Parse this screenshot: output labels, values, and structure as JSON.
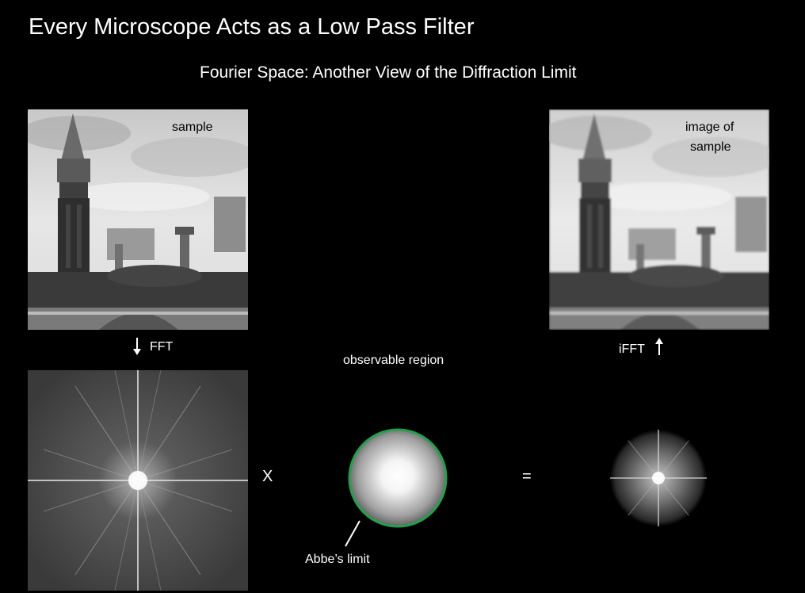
{
  "title": "Every Microscope Acts as a Low Pass Filter",
  "subtitle": "Fourier Space: Another View of the Diffraction Limit",
  "sample_label": "sample",
  "image_label_line1": "image of",
  "image_label_line2": "sample",
  "fft_label": "FFT",
  "ifft_label": "iFFT",
  "observable_label": "observable region",
  "abbe_label": "Abbe’s limit",
  "multiply_symbol": "X",
  "equals_symbol": "=",
  "colors": {
    "background": "#000000",
    "text": "#ffffff",
    "abbe_ring": "#1fa34a"
  },
  "icons": [
    "arrow-down-icon",
    "arrow-up-icon"
  ]
}
